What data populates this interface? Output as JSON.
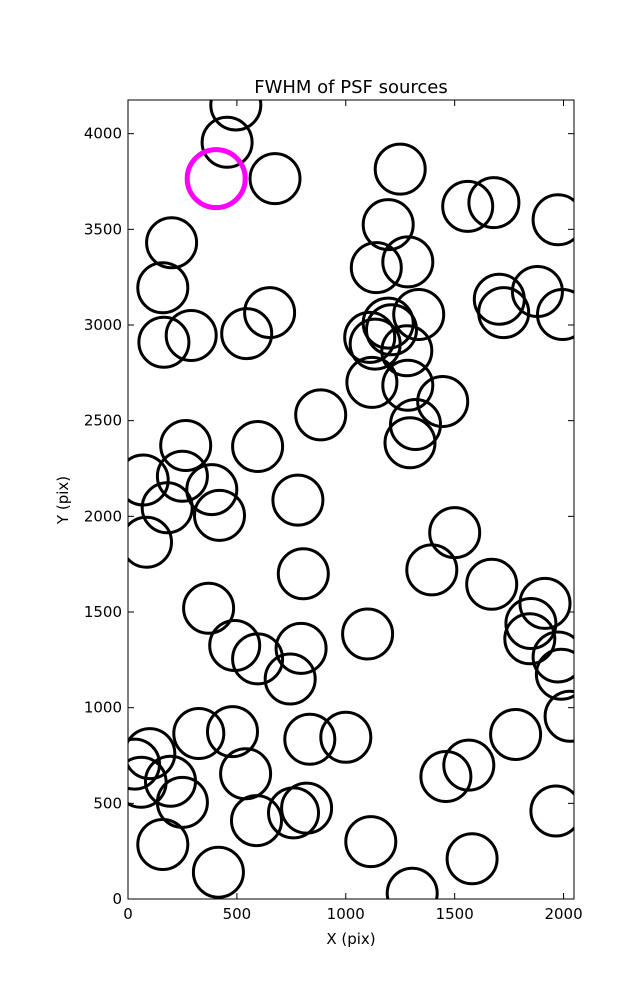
{
  "chart_data": {
    "type": "scatter",
    "title": "FWHM of PSF sources",
    "xlabel": "X (pix)",
    "ylabel": "Y (pix)",
    "xlim": [
      0,
      2048
    ],
    "ylim": [
      0,
      4176
    ],
    "xticks": [
      0,
      500,
      1000,
      1500,
      2000
    ],
    "yticks": [
      0,
      500,
      1000,
      1500,
      2000,
      2500,
      3000,
      3500,
      4000
    ],
    "grid": false,
    "marker": "open-circle",
    "colors": {
      "normal": "#000000",
      "highlight": "#ff00ff"
    },
    "series": [
      {
        "points": [
          {
            "x": 495,
            "y": 4150
          },
          {
            "x": 455,
            "y": 3955
          },
          {
            "x": 675,
            "y": 3765
          },
          {
            "x": 1250,
            "y": 3815
          },
          {
            "x": 1560,
            "y": 3620
          },
          {
            "x": 1680,
            "y": 3640
          },
          {
            "x": 1975,
            "y": 3550
          },
          {
            "x": 1195,
            "y": 3525
          },
          {
            "x": 200,
            "y": 3430
          },
          {
            "x": 1285,
            "y": 3330
          },
          {
            "x": 1140,
            "y": 3300
          },
          {
            "x": 160,
            "y": 3195
          },
          {
            "x": 1705,
            "y": 3135
          },
          {
            "x": 1880,
            "y": 3175
          },
          {
            "x": 1725,
            "y": 3065
          },
          {
            "x": 1995,
            "y": 3055
          },
          {
            "x": 650,
            "y": 3065
          },
          {
            "x": 1335,
            "y": 3055
          },
          {
            "x": 290,
            "y": 2945
          },
          {
            "x": 545,
            "y": 2955
          },
          {
            "x": 165,
            "y": 2910
          },
          {
            "x": 1195,
            "y": 3010
          },
          {
            "x": 1210,
            "y": 2975
          },
          {
            "x": 1110,
            "y": 2935
          },
          {
            "x": 1135,
            "y": 2900
          },
          {
            "x": 1280,
            "y": 2865
          },
          {
            "x": 1120,
            "y": 2700
          },
          {
            "x": 1285,
            "y": 2685
          },
          {
            "x": 1445,
            "y": 2600
          },
          {
            "x": 885,
            "y": 2530
          },
          {
            "x": 1320,
            "y": 2480
          },
          {
            "x": 1295,
            "y": 2385
          },
          {
            "x": 265,
            "y": 2370
          },
          {
            "x": 595,
            "y": 2365
          },
          {
            "x": 70,
            "y": 2190
          },
          {
            "x": 250,
            "y": 2210
          },
          {
            "x": 385,
            "y": 2140
          },
          {
            "x": 780,
            "y": 2085
          },
          {
            "x": 180,
            "y": 2045
          },
          {
            "x": 420,
            "y": 2005
          },
          {
            "x": 1500,
            "y": 1915
          },
          {
            "x": 85,
            "y": 1865
          },
          {
            "x": 1395,
            "y": 1720
          },
          {
            "x": 805,
            "y": 1700
          },
          {
            "x": 1670,
            "y": 1645
          },
          {
            "x": 370,
            "y": 1520
          },
          {
            "x": 1915,
            "y": 1545
          },
          {
            "x": 1850,
            "y": 1440
          },
          {
            "x": 1845,
            "y": 1360
          },
          {
            "x": 1100,
            "y": 1385
          },
          {
            "x": 490,
            "y": 1325
          },
          {
            "x": 795,
            "y": 1310
          },
          {
            "x": 595,
            "y": 1255
          },
          {
            "x": 1975,
            "y": 1265
          },
          {
            "x": 1990,
            "y": 1175
          },
          {
            "x": 745,
            "y": 1150
          },
          {
            "x": 2030,
            "y": 955
          },
          {
            "x": 325,
            "y": 865
          },
          {
            "x": 480,
            "y": 875
          },
          {
            "x": 1780,
            "y": 860
          },
          {
            "x": 100,
            "y": 760
          },
          {
            "x": 835,
            "y": 835
          },
          {
            "x": 1000,
            "y": 845
          },
          {
            "x": 30,
            "y": 705
          },
          {
            "x": 60,
            "y": 610
          },
          {
            "x": 195,
            "y": 615
          },
          {
            "x": 540,
            "y": 655
          },
          {
            "x": 1565,
            "y": 700
          },
          {
            "x": 1460,
            "y": 640
          },
          {
            "x": 250,
            "y": 505
          },
          {
            "x": 820,
            "y": 475
          },
          {
            "x": 760,
            "y": 450
          },
          {
            "x": 1965,
            "y": 460
          },
          {
            "x": 590,
            "y": 410
          },
          {
            "x": 1115,
            "y": 300
          },
          {
            "x": 160,
            "y": 285
          },
          {
            "x": 1580,
            "y": 210
          },
          {
            "x": 415,
            "y": 140
          },
          {
            "x": 1305,
            "y": 30
          }
        ]
      },
      {
        "highlight": true,
        "points": [
          {
            "x": 405,
            "y": 3765
          }
        ]
      }
    ]
  }
}
